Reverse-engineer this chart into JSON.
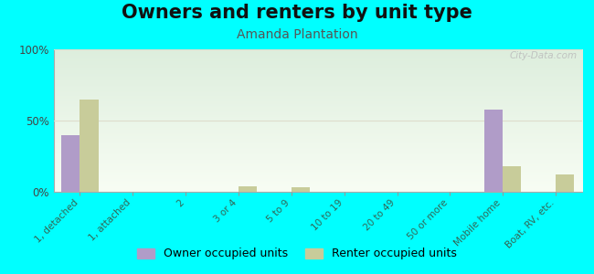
{
  "title": "Owners and renters by unit type",
  "subtitle": "Amanda Plantation",
  "categories": [
    "1, detached",
    "1, attached",
    "2",
    "3 or 4",
    "5 to 9",
    "10 to 19",
    "20 to 49",
    "50 or more",
    "Mobile home",
    "Boat, RV, etc."
  ],
  "owner_values": [
    40,
    0,
    0,
    0,
    0,
    0,
    0,
    0,
    58,
    0
  ],
  "renter_values": [
    65,
    0,
    0,
    4,
    3,
    0,
    0,
    0,
    18,
    12
  ],
  "owner_color": "#b09cc8",
  "renter_color": "#c8cc9a",
  "background_color": "#00ffff",
  "ylabel_ticks": [
    0,
    50,
    100
  ],
  "ylim": [
    0,
    100
  ],
  "bar_width": 0.35,
  "title_fontsize": 15,
  "subtitle_fontsize": 10,
  "legend_labels": [
    "Owner occupied units",
    "Renter occupied units"
  ],
  "watermark": "City-Data.com",
  "tick_label_color": "#336655",
  "grid_color": "#ddddcc",
  "bg_top": "#f8fdf4",
  "bg_bottom": "#ddeedd"
}
